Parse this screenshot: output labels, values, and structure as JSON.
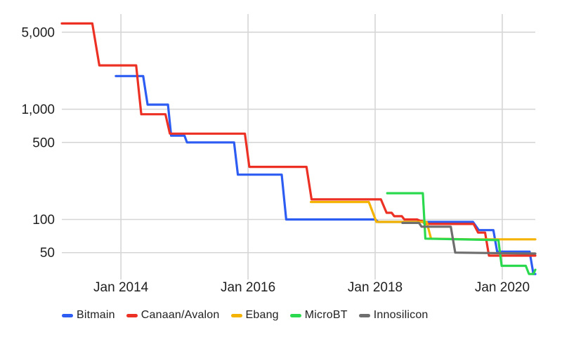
{
  "chart_data": {
    "type": "line",
    "subtype": "stepped-time-series",
    "title": "",
    "xlabel": "",
    "ylabel": "",
    "y_scale": "log",
    "grid": true,
    "legend_position": "bottom",
    "x_domain": [
      2013.07,
      2020.52
    ],
    "y_domain": [
      30.7,
      7300
    ],
    "x_ticks": [
      {
        "label": "Jan 2014",
        "year": 2014
      },
      {
        "label": "Jan 2016",
        "year": 2016
      },
      {
        "label": "Jan 2018",
        "year": 2018
      },
      {
        "label": "Jan 2020",
        "year": 2020
      }
    ],
    "y_ticks": [
      {
        "label": "5,000",
        "value": 5000
      },
      {
        "label": "1,000",
        "value": 1000
      },
      {
        "label": "500",
        "value": 500
      },
      {
        "label": "100",
        "value": 100
      },
      {
        "label": "50",
        "value": 50
      }
    ],
    "grid_color": "#d6d6d6",
    "text_color": "#1f1f1f",
    "series": [
      {
        "name": "Bitmain",
        "color": "#2c5cf2",
        "points": [
          [
            2013.92,
            2000
          ],
          [
            2014.35,
            2000
          ],
          [
            2014.42,
            1100
          ],
          [
            2014.74,
            1100
          ],
          [
            2014.79,
            575
          ],
          [
            2015.0,
            575
          ],
          [
            2015.04,
            500
          ],
          [
            2015.78,
            500
          ],
          [
            2015.84,
            255
          ],
          [
            2016.53,
            255
          ],
          [
            2016.6,
            100
          ],
          [
            2018.0,
            100
          ],
          [
            2018.05,
            95
          ],
          [
            2019.54,
            95
          ],
          [
            2019.63,
            80
          ],
          [
            2019.86,
            80
          ],
          [
            2019.92,
            51
          ],
          [
            2020.43,
            51
          ],
          [
            2020.49,
            32
          ],
          [
            2020.52,
            32
          ]
        ]
      },
      {
        "name": "Canaan/Avalon",
        "color": "#ec3023",
        "points": [
          [
            2013.07,
            6000
          ],
          [
            2013.55,
            6000
          ],
          [
            2013.66,
            2500
          ],
          [
            2014.24,
            2500
          ],
          [
            2014.32,
            900
          ],
          [
            2014.7,
            900
          ],
          [
            2014.77,
            600
          ],
          [
            2015.95,
            600
          ],
          [
            2016.02,
            300
          ],
          [
            2016.92,
            300
          ],
          [
            2017.0,
            152
          ],
          [
            2018.09,
            152
          ],
          [
            2018.18,
            115
          ],
          [
            2018.26,
            115
          ],
          [
            2018.3,
            107
          ],
          [
            2018.42,
            107
          ],
          [
            2018.46,
            100
          ],
          [
            2018.66,
            100
          ],
          [
            2018.71,
            97
          ],
          [
            2018.74,
            97
          ],
          [
            2018.78,
            91
          ],
          [
            2019.55,
            91
          ],
          [
            2019.62,
            76
          ],
          [
            2019.73,
            76
          ],
          [
            2019.79,
            47
          ],
          [
            2020.52,
            47
          ]
        ]
      },
      {
        "name": "Ebang",
        "color": "#f5b301",
        "points": [
          [
            2016.99,
            144
          ],
          [
            2017.9,
            144
          ],
          [
            2018.02,
            95
          ],
          [
            2018.81,
            95
          ],
          [
            2018.88,
            67
          ],
          [
            2019.5,
            66
          ],
          [
            2020.52,
            66
          ]
        ]
      },
      {
        "name": "MicroBT",
        "color": "#2bd94e",
        "points": [
          [
            2018.19,
            173
          ],
          [
            2018.75,
            173
          ],
          [
            2018.79,
            67
          ],
          [
            2019.94,
            65
          ],
          [
            2019.99,
            38
          ],
          [
            2020.37,
            38
          ],
          [
            2020.42,
            32
          ],
          [
            2020.49,
            32
          ],
          [
            2020.52,
            35
          ]
        ]
      },
      {
        "name": "Innosilicon",
        "color": "#6e6e6e",
        "points": [
          [
            2018.43,
            93
          ],
          [
            2018.69,
            93
          ],
          [
            2018.73,
            86
          ],
          [
            2019.19,
            86
          ],
          [
            2019.26,
            50
          ],
          [
            2020.52,
            49
          ]
        ]
      }
    ]
  }
}
